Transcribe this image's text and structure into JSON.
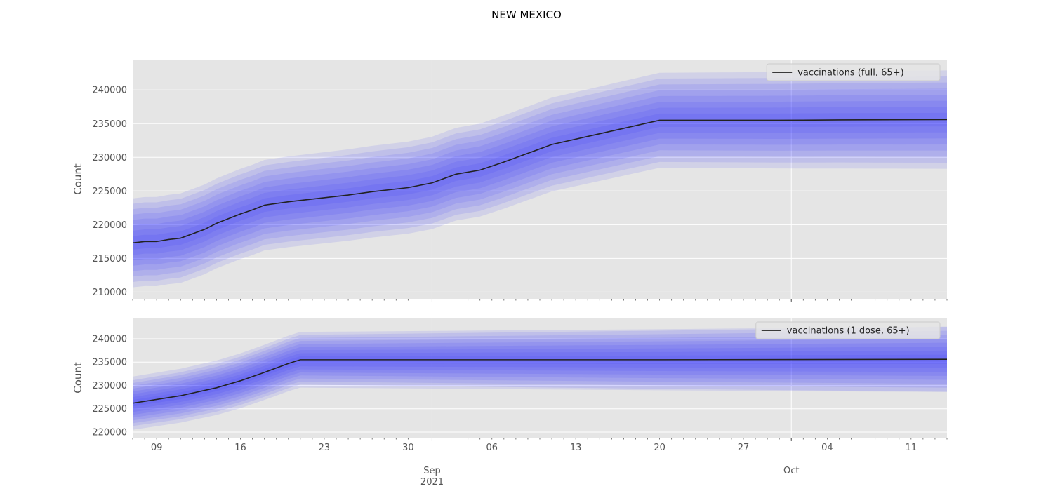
{
  "figure": {
    "title": "NEW MEXICO"
  },
  "chart_data": [
    {
      "type": "line",
      "title": "",
      "xlabel": "",
      "ylabel": "Count",
      "grid": true,
      "legend_position": "top-right",
      "ylim": [
        209000,
        244500
      ],
      "yticks": [
        210000,
        215000,
        220000,
        225000,
        230000,
        235000,
        240000
      ],
      "xlim": [
        "2021-08-07",
        "2021-10-14"
      ],
      "x_major_ticks": [
        {
          "date": "2021-09-01",
          "label": "Sep\n2021"
        },
        {
          "date": "2021-10-01",
          "label": "Oct"
        }
      ],
      "x_minor_labels": [
        {
          "date": "2021-08-09",
          "label": "09"
        },
        {
          "date": "2021-08-16",
          "label": "16"
        },
        {
          "date": "2021-08-23",
          "label": "23"
        },
        {
          "date": "2021-08-30",
          "label": "30"
        },
        {
          "date": "2021-09-06",
          "label": "06"
        },
        {
          "date": "2021-09-13",
          "label": "13"
        },
        {
          "date": "2021-09-20",
          "label": "20"
        },
        {
          "date": "2021-09-27",
          "label": "27"
        },
        {
          "date": "2021-10-04",
          "label": "04"
        },
        {
          "date": "2021-10-11",
          "label": "11"
        }
      ],
      "series": [
        {
          "name": "vaccinations (full, 65+)",
          "color": "#222222",
          "x": [
            "2021-08-07",
            "2021-08-08",
            "2021-08-09",
            "2021-08-10",
            "2021-08-11",
            "2021-08-13",
            "2021-08-14",
            "2021-08-16",
            "2021-08-17",
            "2021-08-18",
            "2021-08-20",
            "2021-08-22",
            "2021-08-25",
            "2021-08-27",
            "2021-08-30",
            "2021-09-01",
            "2021-09-03",
            "2021-09-05",
            "2021-09-07",
            "2021-09-09",
            "2021-09-11",
            "2021-09-20",
            "2021-09-30",
            "2021-10-05",
            "2021-10-14"
          ],
          "y": [
            217300,
            217500,
            217500,
            217800,
            218000,
            219300,
            220200,
            221600,
            222200,
            222900,
            223400,
            223800,
            224400,
            224900,
            225500,
            226200,
            227500,
            228100,
            229300,
            230600,
            231900,
            235500,
            235500,
            235550,
            235600
          ]
        }
      ],
      "uncertainty_bands": {
        "color": "#2a2aff",
        "half_widths_start": [
          1000,
          1800,
          2600,
          3400,
          4200,
          5000,
          5800,
          6600
        ],
        "half_widths_end": [
          1000,
          1900,
          2800,
          3700,
          4600,
          5500,
          6400,
          7300
        ]
      }
    },
    {
      "type": "line",
      "title": "",
      "xlabel": "",
      "ylabel": "Count",
      "grid": true,
      "legend_position": "top-right",
      "ylim": [
        218800,
        244500
      ],
      "yticks": [
        220000,
        225000,
        230000,
        235000,
        240000
      ],
      "xlim": [
        "2021-08-07",
        "2021-10-14"
      ],
      "series": [
        {
          "name": "vaccinations (1 dose, 65+)",
          "color": "#222222",
          "x": [
            "2021-08-07",
            "2021-08-09",
            "2021-08-11",
            "2021-08-14",
            "2021-08-16",
            "2021-08-18",
            "2021-08-20",
            "2021-08-21",
            "2021-09-20",
            "2021-10-14"
          ],
          "y": [
            226200,
            227000,
            227800,
            229500,
            231000,
            232800,
            234700,
            235500,
            235500,
            235600
          ]
        }
      ],
      "uncertainty_bands": {
        "color": "#2a2aff",
        "half_widths_start": [
          700,
          1300,
          1900,
          2500,
          3100,
          3700,
          4300,
          4900,
          5700
        ],
        "half_widths_end": [
          1000,
          1850,
          2700,
          3550,
          4400,
          5250,
          6100,
          6950,
          7000
        ]
      }
    }
  ]
}
